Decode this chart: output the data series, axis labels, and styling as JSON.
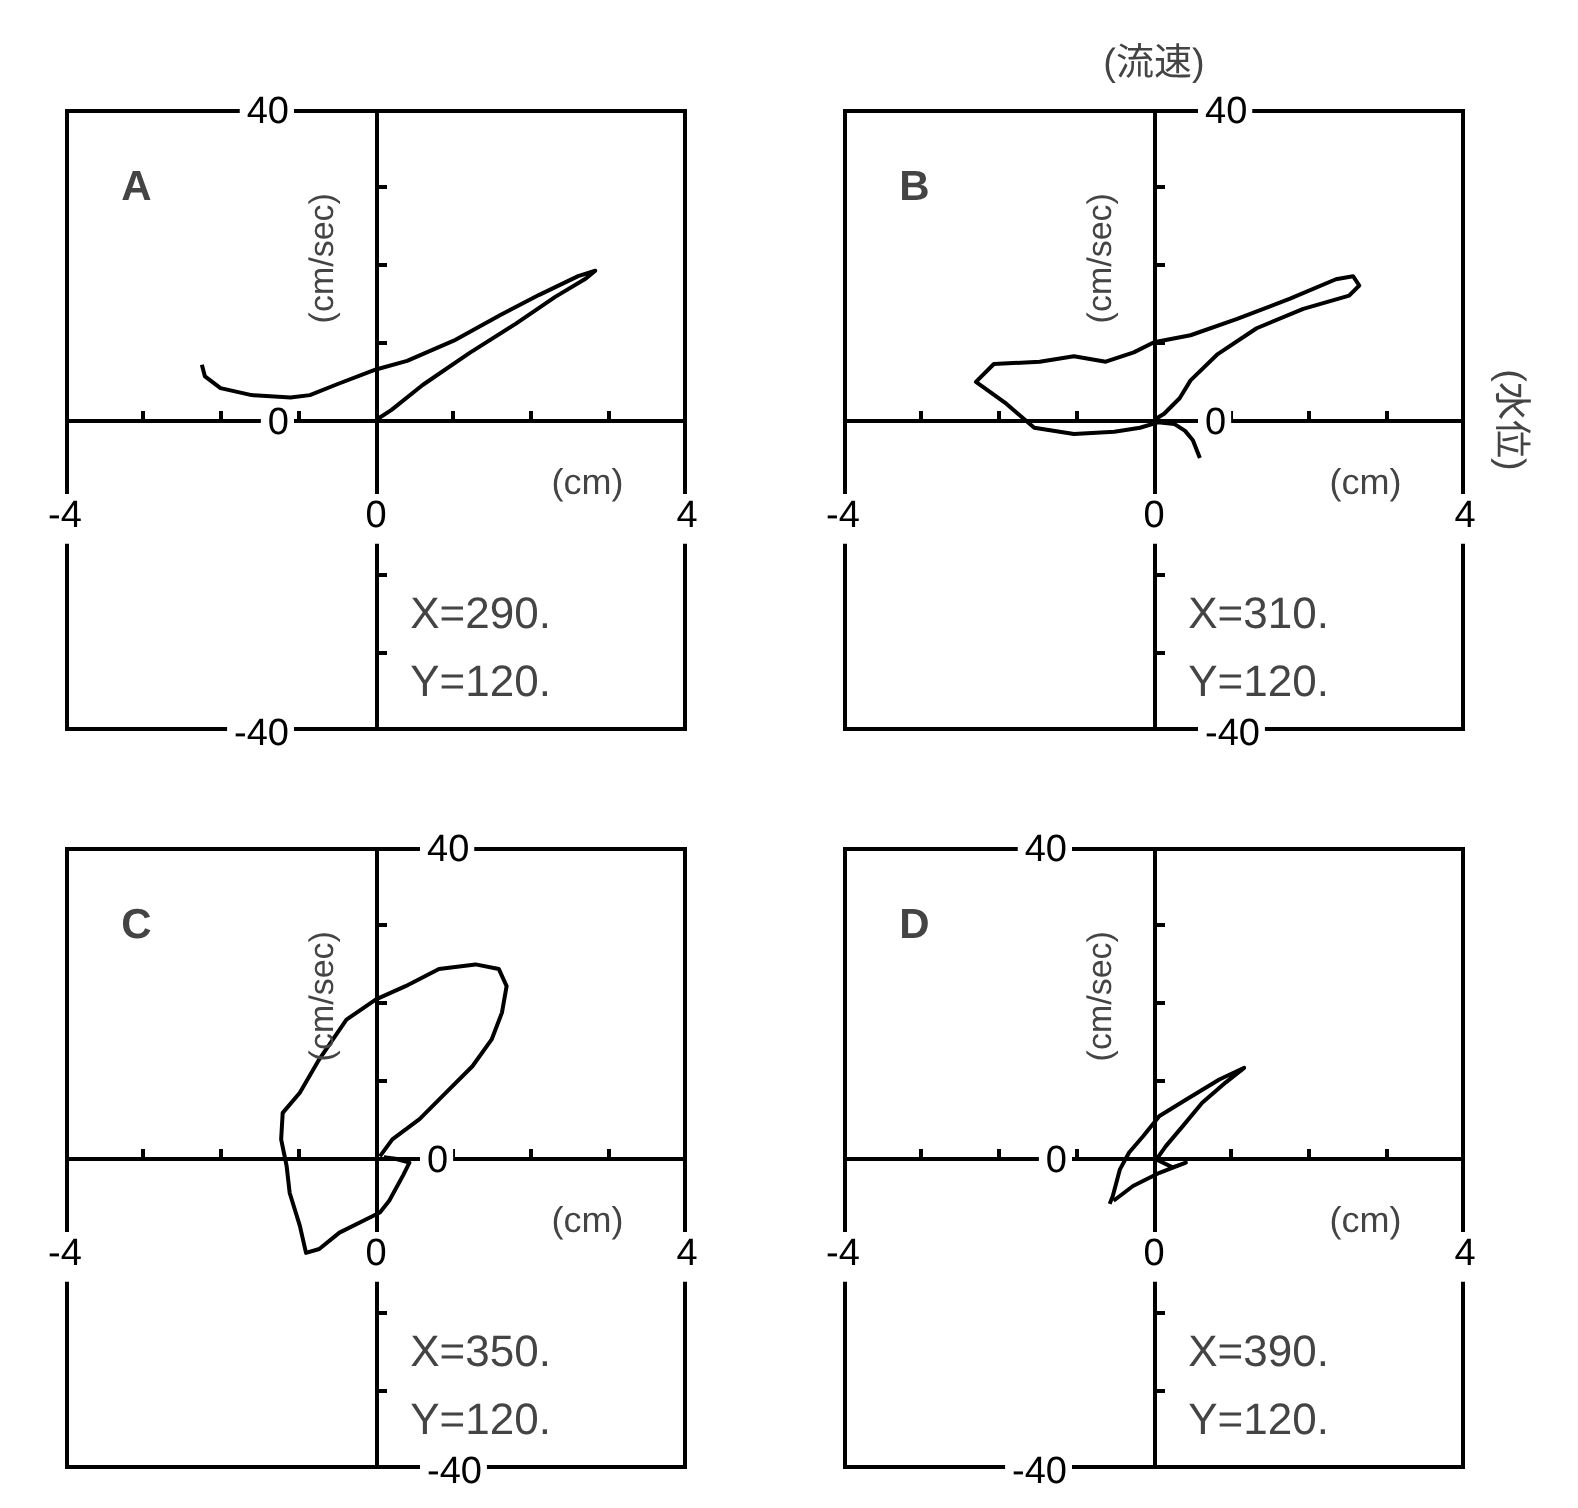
{
  "chart_data": [
    {
      "type": "line",
      "title": "A",
      "xlabel": "(cm)",
      "ylabel": "(cm/sec)",
      "xlim": [
        -4,
        4
      ],
      "ylim": [
        -40,
        40
      ],
      "grid": false,
      "xticks": [
        -4,
        {
          "value": -3,
          "label": null
        },
        {
          "value": -2,
          "label": null
        },
        {
          "value": -1,
          "label": null
        },
        0,
        {
          "value": 1,
          "label": null
        },
        {
          "value": 2,
          "label": null
        },
        {
          "value": 3,
          "label": null
        },
        4
      ],
      "yticks": [
        -40,
        {
          "value": -30,
          "label": null
        },
        {
          "value": -20,
          "label": null
        },
        {
          "value": -10,
          "label": null
        },
        0,
        {
          "value": 10,
          "label": null
        },
        {
          "value": 20,
          "label": null
        },
        {
          "value": 30,
          "label": null
        },
        40
      ],
      "series": [
        {
          "color": "#000000",
          "x": [
            -2.24,
            -2.2,
            -2.0,
            -1.6,
            -1.1,
            -0.85,
            -0.5,
            0,
            0.4,
            1.0,
            1.6,
            2.1,
            2.6,
            2.82,
            2.7,
            2.3,
            1.8,
            1.2,
            0.6,
            0.2,
            0
          ],
          "values": [
            7.1,
            5.6,
            4.1,
            3.2,
            2.9,
            3.2,
            4.6,
            6.5,
            7.6,
            10.2,
            13.5,
            16.1,
            18.5,
            19.2,
            18.2,
            15.8,
            12.4,
            8.6,
            4.5,
            1.3,
            0
          ]
        }
      ],
      "annotations": [
        "X=290.",
        "Y=120."
      ]
    },
    {
      "type": "line",
      "title": "B",
      "xlabel": "(cm)",
      "ylabel": "(cm/sec)",
      "xlim": [
        -4,
        4
      ],
      "ylim": [
        -40,
        40
      ],
      "grid": false,
      "xticks": [
        -4,
        {
          "value": -3,
          "label": null
        },
        {
          "value": -2,
          "label": null
        },
        {
          "value": -1,
          "label": null
        },
        0,
        {
          "value": 1,
          "label": null
        },
        {
          "value": 2,
          "label": null
        },
        {
          "value": 3,
          "label": null
        },
        4
      ],
      "yticks": [
        -40,
        {
          "value": -30,
          "label": null
        },
        {
          "value": -20,
          "label": null
        },
        {
          "value": -10,
          "label": null
        },
        0,
        {
          "value": 10,
          "label": null
        },
        {
          "value": 20,
          "label": null
        },
        {
          "value": 30,
          "label": null
        },
        40
      ],
      "series": [
        {
          "color": "#000000",
          "x": [
            0.59,
            0.5,
            0.4,
            0.26,
            0.05,
            -0.18,
            -0.51,
            -1.03,
            -1.54,
            -1.9,
            -2.29,
            -2.06,
            -1.47,
            -1.03,
            -0.62,
            -0.26,
            0,
            0.47,
            1.07,
            1.75,
            2.34,
            2.56,
            2.64,
            2.51,
            1.92,
            1.32,
            0.81,
            0.47,
            0.33,
            0.13,
            0
          ],
          "values": [
            -4.9,
            -2.6,
            -1.4,
            -0.5,
            -0.3,
            -1.0,
            -1.5,
            -1.8,
            -1.0,
            2.1,
            4.9,
            7.2,
            7.5,
            8.2,
            7.5,
            8.7,
            10.0,
            10.9,
            13.0,
            15.6,
            18.1,
            18.5,
            17.3,
            16.0,
            14.3,
            11.8,
            8.4,
            5.1,
            2.8,
            0.8,
            0
          ]
        }
      ],
      "annotations": [
        "X=310.",
        "Y=120.",
        "(流速)",
        "(水位)"
      ]
    },
    {
      "type": "line",
      "title": "C",
      "xlabel": "(cm)",
      "ylabel": "(cm/sec)",
      "xlim": [
        -4,
        4
      ],
      "ylim": [
        -40,
        40
      ],
      "grid": false,
      "xticks": [
        -4,
        {
          "value": -3,
          "label": null
        },
        {
          "value": -2,
          "label": null
        },
        {
          "value": -1,
          "label": null
        },
        0,
        {
          "value": 1,
          "label": null
        },
        {
          "value": 2,
          "label": null
        },
        {
          "value": 3,
          "label": null
        },
        4
      ],
      "yticks": [
        -40,
        {
          "value": -30,
          "label": null
        },
        {
          "value": -20,
          "label": null
        },
        {
          "value": -10,
          "label": null
        },
        0,
        {
          "value": 10,
          "label": null
        },
        {
          "value": 20,
          "label": null
        },
        {
          "value": 30,
          "label": null
        },
        40
      ],
      "series": [
        {
          "color": "#000000",
          "x": [
            0.05,
            0.21,
            0.56,
            0.9,
            1.24,
            1.49,
            1.62,
            1.68,
            1.58,
            1.28,
            0.81,
            0.38,
            0,
            -0.38,
            -0.73,
            -0.98,
            -1.2,
            -1.22,
            -1.15,
            -1.11,
            -0.98,
            -0.9,
            -0.73,
            -0.47,
            -0.15,
            0.05,
            0.17,
            0.35,
            0.43,
            0.25,
            0.1
          ],
          "values": [
            0.2,
            2.4,
            5.0,
            8.4,
            11.8,
            15.3,
            18.7,
            22.1,
            24.3,
            24.9,
            24.3,
            22.1,
            20.4,
            17.8,
            12.7,
            8.4,
            5.8,
            2.4,
            -1.0,
            -4.5,
            -8.7,
            -12.2,
            -11.7,
            -9.6,
            -8.0,
            -7.0,
            -5.5,
            -2.2,
            -0.6,
            -0.1,
            0.1
          ]
        }
      ],
      "annotations": [
        "X=350.",
        "Y=120."
      ]
    },
    {
      "type": "line",
      "title": "D",
      "xlabel": "(cm)",
      "ylabel": "(cm/sec)",
      "xlim": [
        -4,
        4
      ],
      "ylim": [
        -40,
        40
      ],
      "grid": false,
      "xticks": [
        -4,
        {
          "value": -3,
          "label": null
        },
        {
          "value": -2,
          "label": null
        },
        {
          "value": -1,
          "label": null
        },
        0,
        {
          "value": 1,
          "label": null
        },
        {
          "value": 2,
          "label": null
        },
        {
          "value": 3,
          "label": null
        },
        4
      ],
      "yticks": [
        -40,
        {
          "value": -30,
          "label": null
        },
        {
          "value": -20,
          "label": null
        },
        {
          "value": -10,
          "label": null
        },
        0,
        {
          "value": 10,
          "label": null
        },
        {
          "value": 20,
          "label": null
        },
        {
          "value": 30,
          "label": null
        },
        40
      ],
      "series": [
        {
          "color": "#000000",
          "x": [
            -0.57,
            -0.53,
            -0.44,
            -0.32,
            -0.14,
            0.07,
            0.41,
            0.84,
            1.16,
            0.92,
            0.62,
            0.37,
            0.15,
            0.03,
            0.24,
            0.41,
            0.07,
            -0.27,
            -0.52
          ],
          "values": [
            -5.9,
            -4.9,
            -1.5,
            0.7,
            2.8,
            5.4,
            7.5,
            10.1,
            11.6,
            9.7,
            7.1,
            4.1,
            1.5,
            -0.2,
            -1.2,
            -0.6,
            -1.9,
            -3.6,
            -5.5
          ]
        }
      ],
      "annotations": [
        "X=390.",
        "Y=120."
      ]
    }
  ]
}
